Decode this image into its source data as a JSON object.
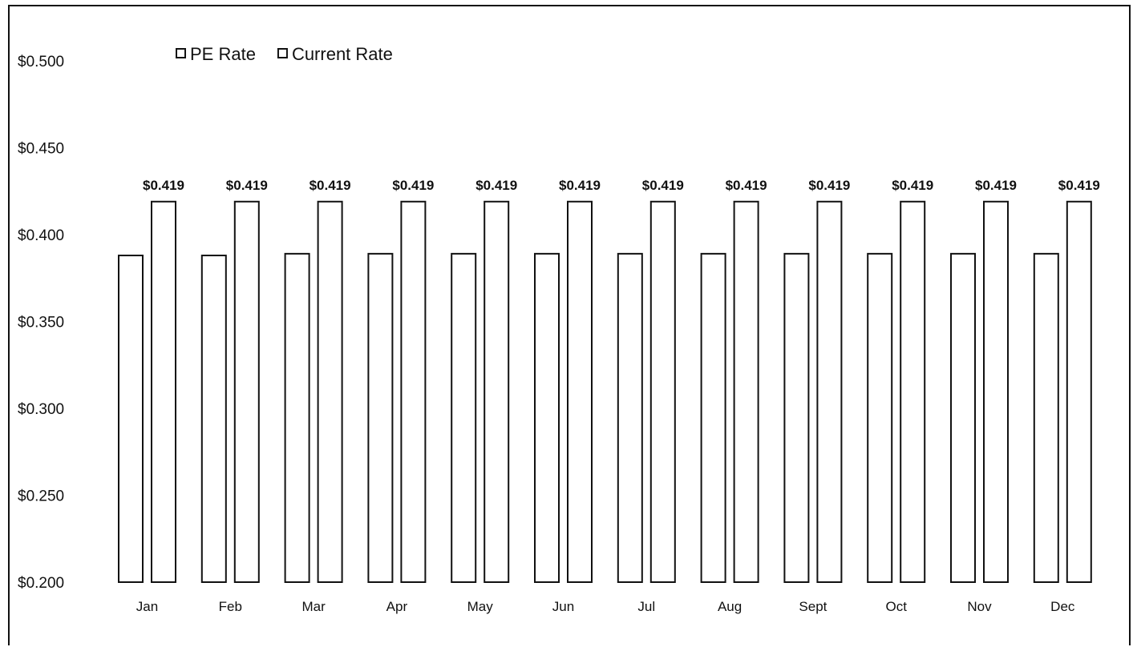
{
  "chart_data": {
    "type": "bar",
    "title": "",
    "xlabel": "",
    "ylabel": "",
    "categories": [
      "Jan",
      "Feb",
      "Mar",
      "Apr",
      "May",
      "Jun",
      "Jul",
      "Aug",
      "Sept",
      "Oct",
      "Nov",
      "Dec"
    ],
    "series": [
      {
        "name": "PE Rate",
        "values": [
          0.388,
          0.388,
          0.389,
          0.389,
          0.389,
          0.389,
          0.389,
          0.389,
          0.389,
          0.389,
          0.389,
          0.389
        ]
      },
      {
        "name": "Current Rate",
        "values": [
          0.419,
          0.419,
          0.419,
          0.419,
          0.419,
          0.419,
          0.419,
          0.419,
          0.419,
          0.419,
          0.419,
          0.419
        ],
        "data_labels": [
          "$0.419",
          "$0.419",
          "$0.419",
          "$0.419",
          "$0.419",
          "$0.419",
          "$0.419",
          "$0.419",
          "$0.419",
          "$0.419",
          "$0.419",
          "$0.419"
        ]
      }
    ],
    "ylim": [
      0.2,
      0.5
    ],
    "y_ticks": [
      "$0.500",
      "$0.450",
      "$0.400",
      "$0.350",
      "$0.300",
      "$0.250",
      "$0.200"
    ],
    "grid": false,
    "legend": {
      "position": "top-left",
      "entries": [
        "PE Rate",
        "Current Rate"
      ]
    }
  }
}
